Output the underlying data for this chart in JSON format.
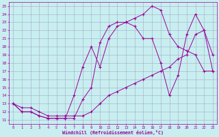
{
  "xlabel": "Windchill (Refroidissement éolien,°C)",
  "bg_color": "#c8eef0",
  "grid_color": "#9999bb",
  "line_color": "#990099",
  "xlim": [
    -0.5,
    23.5
  ],
  "ylim": [
    10.5,
    25.5
  ],
  "xticks": [
    0,
    1,
    2,
    3,
    4,
    5,
    6,
    7,
    8,
    9,
    10,
    11,
    12,
    13,
    14,
    15,
    16,
    17,
    18,
    19,
    20,
    21,
    22,
    23
  ],
  "yticks": [
    11,
    12,
    13,
    14,
    15,
    16,
    17,
    18,
    19,
    20,
    21,
    22,
    23,
    24,
    25
  ],
  "line1_x": [
    0,
    1,
    2,
    3,
    4,
    5,
    6,
    7,
    8,
    9,
    10,
    11,
    12,
    13,
    14,
    15,
    16,
    17,
    18,
    19,
    20,
    21,
    22,
    23
  ],
  "line1_y": [
    13,
    12,
    12,
    11.5,
    11.2,
    11.2,
    11.2,
    11.2,
    13.5,
    15,
    20.5,
    22.5,
    23,
    23,
    23.5,
    24,
    25,
    24.5,
    21.5,
    20,
    19.5,
    19,
    17,
    17
  ],
  "line2_x": [
    0,
    1,
    2,
    3,
    4,
    5,
    6,
    7,
    8,
    9,
    10,
    11,
    12,
    13,
    14,
    15,
    16,
    17,
    18,
    19,
    20,
    21,
    22,
    23
  ],
  "line2_y": [
    13,
    12.5,
    12.5,
    12,
    11.5,
    11.5,
    11.5,
    11.5,
    11.5,
    12,
    13,
    14,
    14.5,
    15,
    15.5,
    16,
    16.5,
    17,
    17.5,
    18.5,
    19,
    21.5,
    22,
    17
  ],
  "line3_x": [
    0,
    1,
    2,
    3,
    4,
    5,
    6,
    7,
    8,
    9,
    10,
    11,
    12,
    13,
    14,
    15,
    16,
    17,
    18,
    19,
    20,
    21,
    22,
    23
  ],
  "line3_y": [
    13,
    12,
    12,
    11.5,
    11.2,
    11.2,
    11.2,
    14,
    17.5,
    20,
    17.5,
    21,
    22.5,
    23,
    22.5,
    21,
    21,
    18,
    14,
    16.5,
    21.5,
    24,
    22,
    19
  ]
}
